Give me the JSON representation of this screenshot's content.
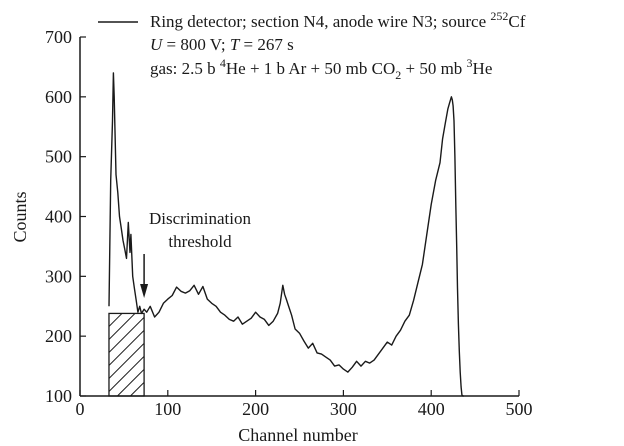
{
  "chart_data": {
    "type": "line",
    "xlabel": "Channel number",
    "ylabel": "Counts",
    "xlim": [
      0,
      500
    ],
    "ylim": [
      100,
      700
    ],
    "xticks": [
      0,
      100,
      200,
      300,
      400,
      500
    ],
    "yticks": [
      100,
      200,
      300,
      400,
      500,
      600,
      700
    ],
    "grid": false,
    "legend_position": "top",
    "legend": {
      "line1_a": "Ring detector; section N4, anode wire N3; source ",
      "line1_sup": "252",
      "line1_b": "Cf",
      "line2_U": "U",
      "line2_a": " = 800 V; ",
      "line2_T": "T",
      "line2_b": " = 267 s",
      "line3_a": "gas: 2.5 b ",
      "line3_sup1": "4",
      "line3_b": "He + 1 b Ar + 50 mb CO",
      "line3_sub": "2",
      "line3_c": "  + 50 mb ",
      "line3_sup2": "3",
      "line3_d": "He"
    },
    "annotation": {
      "line1": "Discrimination",
      "line2": "threshold",
      "x": 73,
      "hatch_x_range": [
        33,
        73
      ],
      "hatch_y_top": 238
    },
    "series": [
      {
        "x": [
          33,
          35,
          37,
          38,
          39,
          41,
          43,
          45,
          47,
          49,
          51,
          53,
          55,
          57,
          58,
          60,
          62,
          64,
          66,
          68,
          70,
          73,
          76,
          80,
          85,
          90,
          95,
          100,
          105,
          110,
          115,
          120,
          125,
          130,
          135,
          140,
          145,
          150,
          155,
          160,
          165,
          170,
          175,
          180,
          185,
          190,
          195,
          200,
          205,
          210,
          215,
          220,
          225,
          228,
          231,
          233,
          235,
          238,
          241,
          245,
          250,
          255,
          260,
          265,
          270,
          275,
          280,
          285,
          290,
          295,
          300,
          305,
          310,
          315,
          320,
          325,
          330,
          335,
          340,
          345,
          350,
          355,
          360,
          365,
          370,
          375,
          380,
          385,
          390,
          395,
          400,
          405,
          410,
          413,
          416,
          419,
          421,
          423,
          424,
          425,
          426,
          427,
          428,
          429,
          430,
          431,
          432,
          433,
          434,
          435,
          436,
          437
        ],
        "y": [
          250,
          460,
          560,
          640,
          600,
          470,
          440,
          400,
          380,
          360,
          345,
          330,
          390,
          340,
          370,
          300,
          280,
          260,
          240,
          250,
          238,
          245,
          240,
          250,
          232,
          240,
          255,
          262,
          268,
          282,
          275,
          272,
          276,
          285,
          270,
          283,
          262,
          255,
          250,
          240,
          235,
          228,
          225,
          232,
          220,
          225,
          230,
          240,
          232,
          228,
          218,
          225,
          238,
          255,
          285,
          270,
          262,
          248,
          235,
          212,
          205,
          192,
          180,
          188,
          172,
          170,
          165,
          160,
          150,
          152,
          145,
          140,
          148,
          158,
          150,
          158,
          155,
          160,
          170,
          180,
          190,
          185,
          200,
          210,
          225,
          235,
          260,
          290,
          320,
          370,
          420,
          460,
          490,
          530,
          555,
          580,
          590,
          600,
          595,
          585,
          560,
          500,
          420,
          350,
          280,
          220,
          175,
          140,
          115,
          102,
          100,
          100
        ]
      }
    ]
  }
}
